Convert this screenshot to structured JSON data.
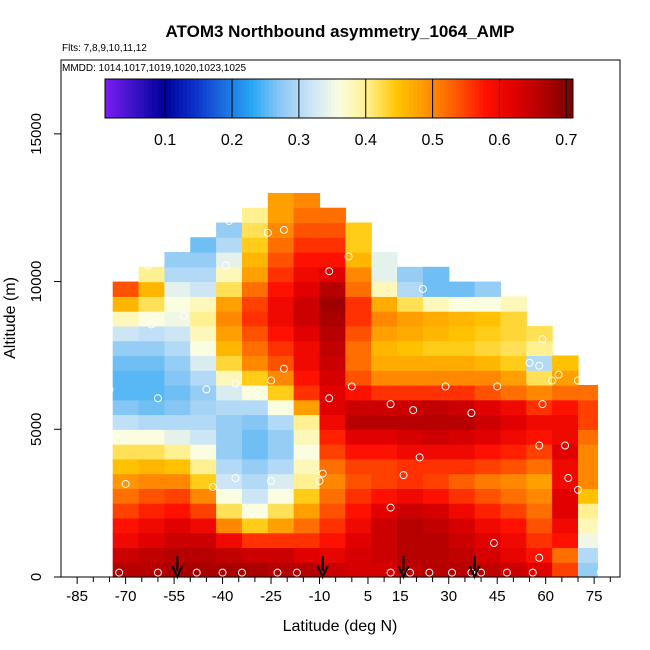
{
  "chart_data": {
    "type": "heatmap",
    "title": "ATOM3 Northbound asymmetry_1064_AMP",
    "flights_label": "Flts: 7,8,9,10,11,12",
    "dates_label": "MMDD: 1014,1017,1019,1020,1023,1025",
    "xlabel": "Latitude (deg N)",
    "ylabel": "Altitude (m)",
    "xlim": [
      -90,
      83
    ],
    "ylim": [
      0,
      17500
    ],
    "x_ticks": [
      -85,
      -70,
      -55,
      -40,
      -25,
      -10,
      5,
      15,
      30,
      45,
      60,
      75
    ],
    "x_minor_ticks": [
      -80,
      -75,
      -65,
      -60,
      -50,
      -45,
      -35,
      -30,
      -20,
      -15,
      -5,
      0,
      10,
      20,
      25,
      35,
      40,
      50,
      55,
      65,
      70,
      80
    ],
    "y_ticks": [
      0,
      5000,
      10000,
      15000
    ],
    "colorbar": {
      "range": [
        0.01,
        0.71
      ],
      "tick_labels": [
        "0.1",
        "0.2",
        "0.3",
        "0.4",
        "0.5",
        "0.6",
        "0.7"
      ],
      "tick_values": [
        0.1,
        0.2,
        0.3,
        0.4,
        0.5,
        0.6,
        0.7
      ],
      "colors": [
        "#7b1cf2",
        "#3a13c8",
        "#00009a",
        "#0a2ec8",
        "#1a6ae0",
        "#27a6f5",
        "#8cc8f4",
        "#c9e4f7",
        "#fbfde0",
        "#fff08a",
        "#ffc400",
        "#ff9400",
        "#ff5a00",
        "#ff1200",
        "#de0000",
        "#b00000",
        "#7a0000"
      ]
    },
    "arrows_lat": [
      -54,
      -9,
      16,
      38
    ],
    "profile_extent": {
      "lat_edges": [
        -74,
        -66,
        -58,
        -50,
        -42,
        -34,
        -26,
        -18,
        -10,
        -2,
        6,
        14,
        22,
        30,
        38,
        46,
        54,
        62,
        70,
        76
      ],
      "top_alt_m": [
        9800,
        10500,
        10800,
        11400,
        11800,
        12200,
        12600,
        12900,
        12400,
        11600,
        11000,
        10500,
        10200,
        9900,
        9600,
        9200,
        8400,
        7400,
        6500
      ]
    },
    "heatmap_bins": {
      "alt_top_m": [
        500,
        1000,
        1500,
        2000,
        2500,
        3000,
        3500,
        4000,
        4500,
        5000,
        5500,
        6000,
        6500,
        7000,
        7500,
        8000,
        8500,
        9000,
        9500,
        10000,
        10500,
        11000,
        11500,
        12000,
        12500,
        13000
      ],
      "values": [
        [
          0.66,
          0.66,
          0.67,
          0.67,
          0.67,
          0.67,
          0.66,
          0.66,
          0.64,
          0.63,
          0.63,
          0.65,
          0.66,
          0.66,
          0.65,
          0.64,
          0.62,
          0.55,
          0.28
        ],
        [
          0.64,
          0.65,
          0.66,
          0.66,
          0.65,
          0.64,
          0.64,
          0.62,
          0.61,
          0.63,
          0.64,
          0.66,
          0.66,
          0.65,
          0.63,
          0.61,
          0.58,
          0.52,
          0.3
        ],
        [
          0.6,
          0.62,
          0.64,
          0.64,
          0.6,
          0.56,
          0.56,
          0.56,
          0.58,
          0.62,
          0.64,
          0.66,
          0.66,
          0.64,
          0.62,
          0.6,
          0.56,
          0.58,
          0.35
        ],
        [
          0.58,
          0.6,
          0.62,
          0.6,
          0.5,
          0.44,
          0.48,
          0.52,
          0.56,
          0.6,
          0.64,
          0.66,
          0.65,
          0.63,
          0.6,
          0.58,
          0.54,
          0.6,
          0.38
        ],
        [
          0.55,
          0.57,
          0.58,
          0.55,
          0.42,
          0.36,
          0.42,
          0.48,
          0.54,
          0.58,
          0.62,
          0.64,
          0.63,
          0.6,
          0.57,
          0.55,
          0.52,
          0.62,
          0.4
        ],
        [
          0.52,
          0.54,
          0.55,
          0.5,
          0.36,
          0.32,
          0.36,
          0.44,
          0.52,
          0.56,
          0.58,
          0.6,
          0.58,
          0.56,
          0.54,
          0.52,
          0.5,
          0.62,
          0.45
        ],
        [
          0.49,
          0.5,
          0.5,
          0.44,
          0.32,
          0.3,
          0.33,
          0.4,
          0.5,
          0.54,
          0.55,
          0.56,
          0.55,
          0.53,
          0.51,
          0.5,
          0.48,
          0.6,
          0.5
        ],
        [
          0.45,
          0.46,
          0.45,
          0.4,
          0.3,
          0.28,
          0.3,
          0.38,
          0.52,
          0.55,
          0.55,
          0.56,
          0.56,
          0.56,
          0.55,
          0.54,
          0.52,
          0.6,
          0.5
        ],
        [
          0.42,
          0.42,
          0.4,
          0.36,
          0.28,
          0.26,
          0.28,
          0.36,
          0.55,
          0.58,
          0.58,
          0.6,
          0.6,
          0.6,
          0.58,
          0.57,
          0.55,
          0.62,
          0.5
        ],
        [
          0.36,
          0.36,
          0.34,
          0.32,
          0.28,
          0.26,
          0.28,
          0.38,
          0.57,
          0.62,
          0.62,
          0.63,
          0.64,
          0.63,
          0.62,
          0.6,
          0.58,
          0.6,
          0.52
        ],
        [
          0.31,
          0.3,
          0.3,
          0.3,
          0.28,
          0.27,
          0.3,
          0.4,
          0.6,
          0.66,
          0.66,
          0.66,
          0.66,
          0.66,
          0.64,
          0.62,
          0.6,
          0.6,
          0.55
        ],
        [
          0.27,
          0.26,
          0.27,
          0.29,
          0.3,
          0.3,
          0.36,
          0.48,
          0.62,
          0.64,
          0.64,
          0.64,
          0.65,
          0.64,
          0.62,
          0.6,
          0.56,
          0.58,
          0.55
        ],
        [
          0.25,
          0.25,
          0.26,
          0.28,
          0.33,
          0.36,
          0.44,
          0.56,
          0.62,
          0.58,
          0.56,
          0.56,
          0.56,
          0.56,
          0.54,
          0.52,
          0.5,
          0.52,
          0.52
        ],
        [
          0.25,
          0.25,
          0.27,
          0.3,
          0.38,
          0.44,
          0.5,
          0.58,
          0.63,
          0.54,
          0.5,
          0.5,
          0.5,
          0.5,
          0.5,
          0.48,
          0.42,
          0.48,
          0.48
        ],
        [
          0.26,
          0.26,
          0.28,
          0.33,
          0.43,
          0.5,
          0.54,
          0.6,
          0.64,
          0.52,
          0.47,
          0.47,
          0.47,
          0.47,
          0.46,
          0.44,
          0.3,
          0.45,
          0.45
        ],
        [
          0.28,
          0.28,
          0.3,
          0.36,
          0.46,
          0.52,
          0.56,
          0.6,
          0.65,
          0.52,
          0.46,
          0.45,
          0.44,
          0.44,
          0.43,
          0.42,
          0.4,
          0.42,
          0.42
        ],
        [
          0.32,
          0.31,
          0.32,
          0.38,
          0.48,
          0.54,
          0.58,
          0.62,
          0.66,
          0.54,
          0.48,
          0.47,
          0.46,
          0.45,
          0.44,
          0.43,
          0.42,
          0.42,
          0.42
        ],
        [
          0.38,
          0.36,
          0.35,
          0.4,
          0.5,
          0.56,
          0.6,
          0.64,
          0.67,
          0.56,
          0.5,
          0.48,
          0.47,
          0.46,
          0.45,
          0.43,
          0.42,
          0.42,
          0.42
        ],
        [
          0.46,
          0.42,
          0.36,
          0.38,
          0.48,
          0.55,
          0.6,
          0.64,
          0.68,
          0.56,
          0.47,
          0.42,
          0.38,
          0.36,
          0.36,
          0.38,
          0.4,
          0.42,
          0.42
        ],
        [
          0.54,
          0.46,
          0.34,
          0.32,
          0.42,
          0.52,
          0.58,
          0.62,
          0.66,
          0.52,
          0.38,
          0.3,
          0.26,
          0.26,
          0.28,
          0.32,
          0.36,
          0.4,
          0.4
        ],
        [
          0.5,
          0.4,
          0.3,
          0.3,
          0.38,
          0.48,
          0.56,
          0.6,
          0.62,
          0.5,
          0.34,
          0.28,
          0.26,
          0.26,
          0.3,
          0.34,
          0.38,
          0.4,
          0.4
        ],
        [
          0.45,
          0.36,
          0.28,
          0.28,
          0.34,
          0.46,
          0.54,
          0.58,
          0.58,
          0.46,
          0.34,
          0.3,
          0.3,
          0.32,
          0.36,
          0.4,
          0.4,
          0.4,
          0.4
        ],
        [
          0.4,
          0.34,
          0.28,
          0.26,
          0.3,
          0.44,
          0.52,
          0.56,
          0.56,
          0.44,
          0.36,
          0.34,
          0.34,
          0.36,
          0.4,
          0.4,
          0.4,
          0.4,
          0.4
        ],
        [
          0.38,
          0.34,
          0.28,
          0.25,
          0.28,
          0.42,
          0.5,
          0.54,
          0.54,
          0.44,
          0.38,
          0.36,
          0.36,
          0.38,
          0.4,
          0.4,
          0.4,
          0.4,
          0.4
        ],
        [
          0.38,
          0.34,
          0.28,
          0.26,
          0.3,
          0.4,
          0.48,
          0.52,
          0.52,
          0.46,
          0.4,
          0.38,
          0.38,
          0.4,
          0.4,
          0.4,
          0.4,
          0.4,
          0.4
        ],
        [
          0.38,
          0.34,
          0.3,
          0.28,
          0.32,
          0.4,
          0.48,
          0.5,
          0.5,
          0.46,
          0.4,
          0.38,
          0.38,
          0.4,
          0.4,
          0.4,
          0.4,
          0.4,
          0.4
        ]
      ]
    },
    "sample_points": [
      {
        "lat": -72,
        "alt": 150
      },
      {
        "lat": -60,
        "alt": 150
      },
      {
        "lat": -48,
        "alt": 150
      },
      {
        "lat": -40,
        "alt": 150
      },
      {
        "lat": -34,
        "alt": 150
      },
      {
        "lat": -23,
        "alt": 150
      },
      {
        "lat": -17,
        "alt": 150
      },
      {
        "lat": 12,
        "alt": 150
      },
      {
        "lat": 18,
        "alt": 150
      },
      {
        "lat": 24,
        "alt": 150
      },
      {
        "lat": 31,
        "alt": 150
      },
      {
        "lat": 37,
        "alt": 150
      },
      {
        "lat": 40,
        "alt": 150
      },
      {
        "lat": 48,
        "alt": 150
      },
      {
        "lat": 56,
        "alt": 150
      },
      {
        "lat": 77,
        "alt": 150
      },
      {
        "lat": 44,
        "alt": 1150
      },
      {
        "lat": 58,
        "alt": 650
      },
      {
        "lat": 12,
        "alt": 2350
      },
      {
        "lat": 70,
        "alt": 2950
      },
      {
        "lat": -70,
        "alt": 3150
      },
      {
        "lat": -43,
        "alt": 3050
      },
      {
        "lat": -36,
        "alt": 3350
      },
      {
        "lat": -25,
        "alt": 3250
      },
      {
        "lat": -10,
        "alt": 3250
      },
      {
        "lat": -9,
        "alt": 3500
      },
      {
        "lat": 16,
        "alt": 3450
      },
      {
        "lat": 21,
        "alt": 4050
      },
      {
        "lat": -83,
        "alt": 3350
      },
      {
        "lat": 58,
        "alt": 4450
      },
      {
        "lat": 67,
        "alt": 3350
      },
      {
        "lat": 66,
        "alt": 4450
      },
      {
        "lat": -60,
        "alt": 6050
      },
      {
        "lat": -45,
        "alt": 6350
      },
      {
        "lat": -36,
        "alt": 6550
      },
      {
        "lat": -25,
        "alt": 6650
      },
      {
        "lat": -21,
        "alt": 7050
      },
      {
        "lat": -7,
        "alt": 6050
      },
      {
        "lat": 0,
        "alt": 6450
      },
      {
        "lat": 12,
        "alt": 5850
      },
      {
        "lat": 19,
        "alt": 5650
      },
      {
        "lat": 29,
        "alt": 6450
      },
      {
        "lat": 37,
        "alt": 5550
      },
      {
        "lat": 45,
        "alt": 6450
      },
      {
        "lat": 55,
        "alt": 7250
      },
      {
        "lat": 58,
        "alt": 7150
      },
      {
        "lat": 59,
        "alt": 5850
      },
      {
        "lat": 62,
        "alt": 6650
      },
      {
        "lat": 64,
        "alt": 6850
      },
      {
        "lat": 70,
        "alt": 6650
      },
      {
        "lat": -75,
        "alt": 6350
      },
      {
        "lat": -86,
        "alt": 5450
      },
      {
        "lat": -80,
        "alt": 7550
      },
      {
        "lat": -62,
        "alt": 8550
      },
      {
        "lat": -52,
        "alt": 8850
      },
      {
        "lat": 59,
        "alt": 8050
      },
      {
        "lat": 64,
        "alt": 7650
      },
      {
        "lat": -63,
        "alt": 10550
      },
      {
        "lat": -39,
        "alt": 10550
      },
      {
        "lat": -7,
        "alt": 10350
      },
      {
        "lat": -1,
        "alt": 10850
      },
      {
        "lat": 22,
        "alt": 9750
      },
      {
        "lat": 34,
        "alt": 10350
      },
      {
        "lat": -26,
        "alt": 11650
      },
      {
        "lat": -21,
        "alt": 11750
      },
      {
        "lat": -38,
        "alt": 12050
      }
    ]
  }
}
